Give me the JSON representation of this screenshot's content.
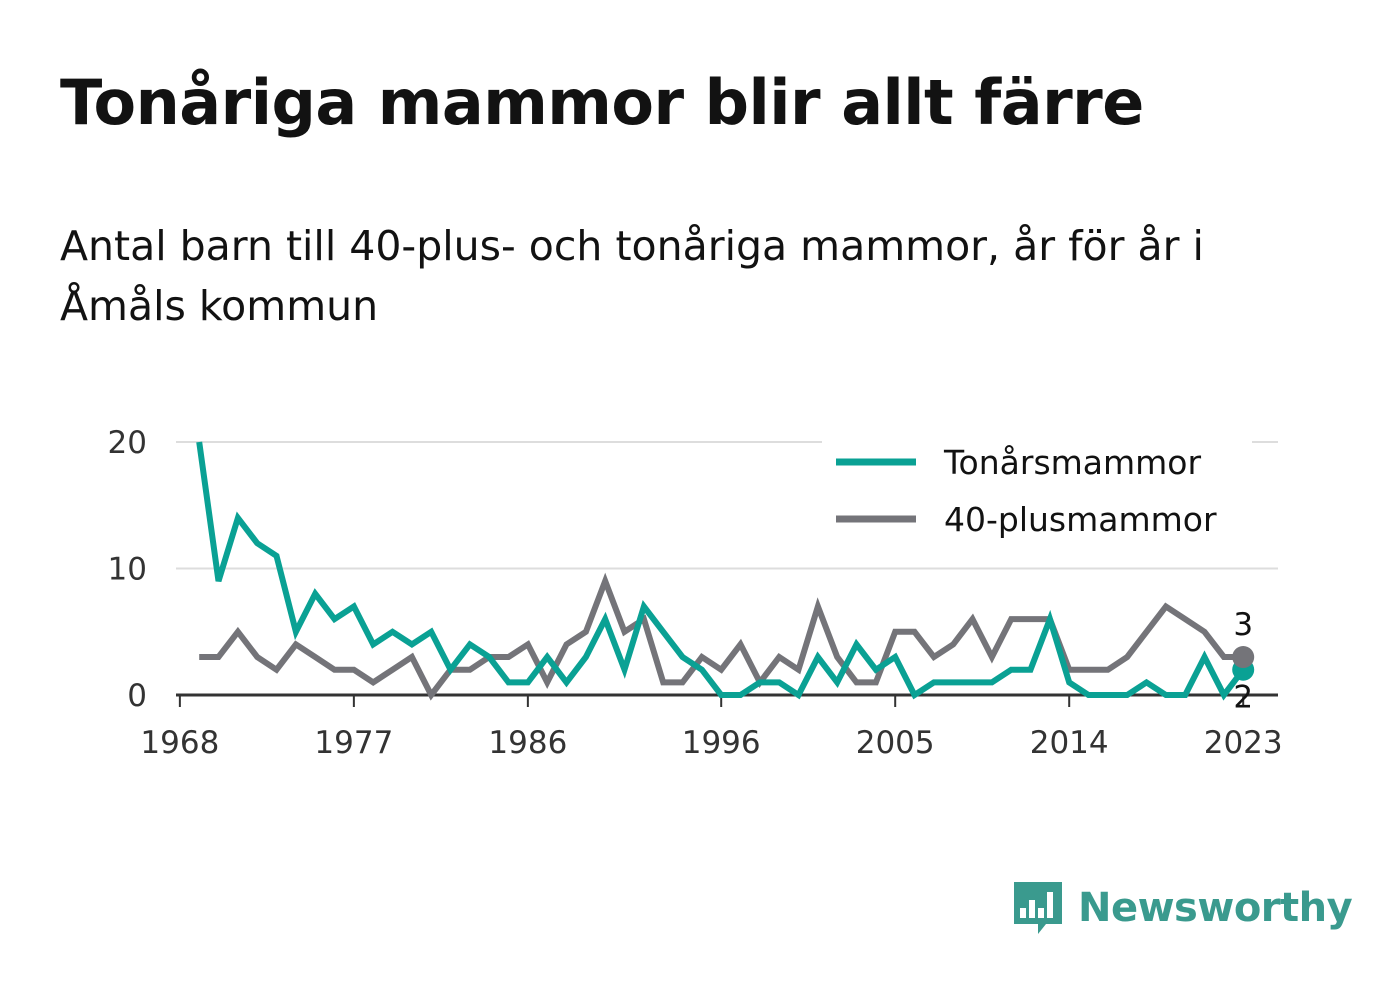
{
  "title": "Tonåriga mammor blir allt färre",
  "subtitle": "Antal barn till 40-plus- och tonåriga mammor, år för år i Åmåls kommun",
  "brand": {
    "name": "Newsworthy",
    "color": "#3a9a8e"
  },
  "chart_data": {
    "type": "line",
    "title": "Tonåriga mammor blir allt färre",
    "subtitle": "Antal barn till 40-plus- och tonåriga mammor, år för år i Åmåls kommun",
    "xlabel": "",
    "ylabel": "",
    "x": [
      1969,
      1970,
      1971,
      1972,
      1973,
      1974,
      1975,
      1976,
      1977,
      1978,
      1979,
      1980,
      1981,
      1982,
      1983,
      1984,
      1985,
      1986,
      1987,
      1988,
      1989,
      1990,
      1991,
      1992,
      1993,
      1994,
      1995,
      1996,
      1997,
      1998,
      1999,
      2000,
      2001,
      2002,
      2003,
      2004,
      2005,
      2006,
      2007,
      2008,
      2009,
      2010,
      2011,
      2012,
      2013,
      2014,
      2015,
      2016,
      2017,
      2018,
      2019,
      2020,
      2021,
      2022,
      2023
    ],
    "xticks": [
      1968,
      1977,
      1986,
      1996,
      2005,
      2014,
      2023
    ],
    "xlim": [
      1967.8,
      2024.8
    ],
    "yticks": [
      0,
      10,
      20
    ],
    "ylim": [
      0,
      20
    ],
    "grid": true,
    "legend_position": "top-right",
    "series": [
      {
        "name": "Tonårsmammor",
        "color": "#0aa194",
        "values": [
          20,
          9,
          14,
          12,
          11,
          5,
          8,
          6,
          7,
          4,
          5,
          4,
          5,
          2,
          4,
          3,
          1,
          1,
          3,
          1,
          3,
          6,
          2,
          7,
          5,
          3,
          2,
          0,
          0,
          1,
          1,
          0,
          3,
          1,
          4,
          2,
          3,
          0,
          1,
          1,
          1,
          1,
          2,
          2,
          6,
          1,
          0,
          0,
          0,
          1,
          0,
          0,
          3,
          0,
          2
        ],
        "end_label": "2"
      },
      {
        "name": "40-plusmammor",
        "color": "#747479",
        "values": [
          3,
          3,
          5,
          3,
          2,
          4,
          3,
          2,
          2,
          1,
          2,
          3,
          0,
          2,
          2,
          3,
          3,
          4,
          1,
          4,
          5,
          9,
          5,
          6,
          1,
          1,
          3,
          2,
          4,
          1,
          3,
          2,
          7,
          3,
          1,
          1,
          5,
          5,
          3,
          4,
          6,
          3,
          6,
          6,
          6,
          2,
          2,
          2,
          3,
          5,
          7,
          6,
          5,
          3,
          3
        ],
        "end_label": "3"
      }
    ]
  }
}
